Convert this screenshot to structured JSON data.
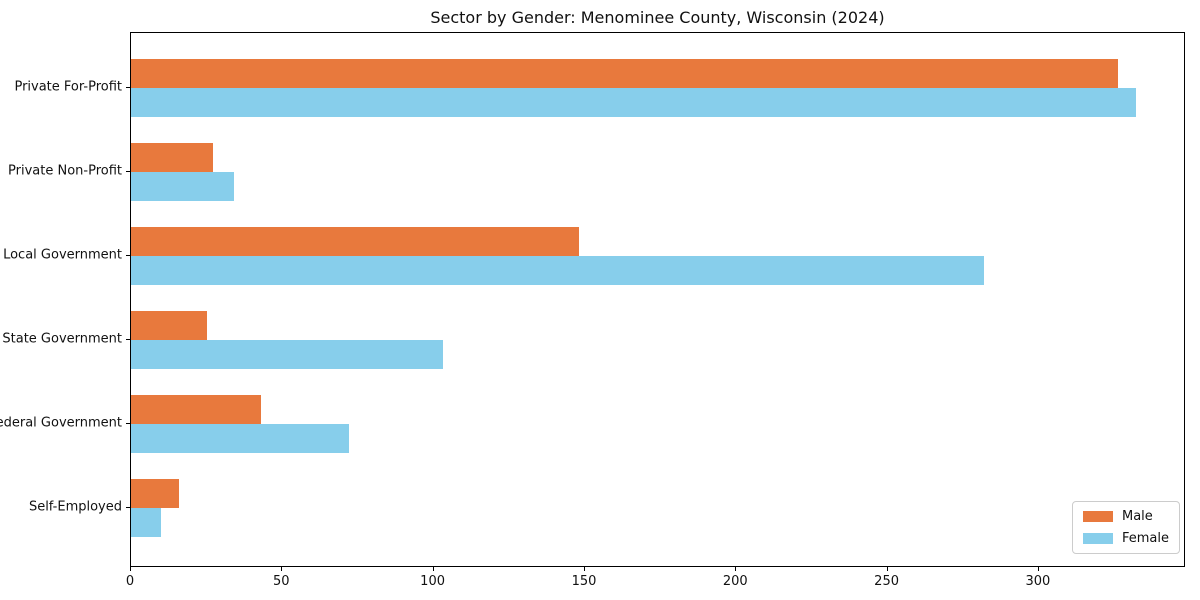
{
  "chart_data": {
    "type": "bar",
    "orientation": "horizontal",
    "title": "Sector by Gender: Menominee County, Wisconsin (2024)",
    "categories": [
      "Private For-Profit",
      "Private Non-Profit",
      "Local Government",
      "State Government",
      "Federal Government",
      "Self-Employed"
    ],
    "series": [
      {
        "name": "Male",
        "color": "#E8793D",
        "values": [
          326,
          27,
          148,
          25,
          43,
          16
        ]
      },
      {
        "name": "Female",
        "color": "#87CEEB",
        "values": [
          332,
          34,
          282,
          103,
          72,
          10
        ]
      }
    ],
    "xlabel": "",
    "ylabel": "",
    "xlim": [
      0,
      348.6
    ],
    "xticks": [
      0,
      50,
      100,
      150,
      200,
      250,
      300
    ],
    "grid": false,
    "legend_position": "lower right",
    "plot_background": "#ffffff"
  }
}
